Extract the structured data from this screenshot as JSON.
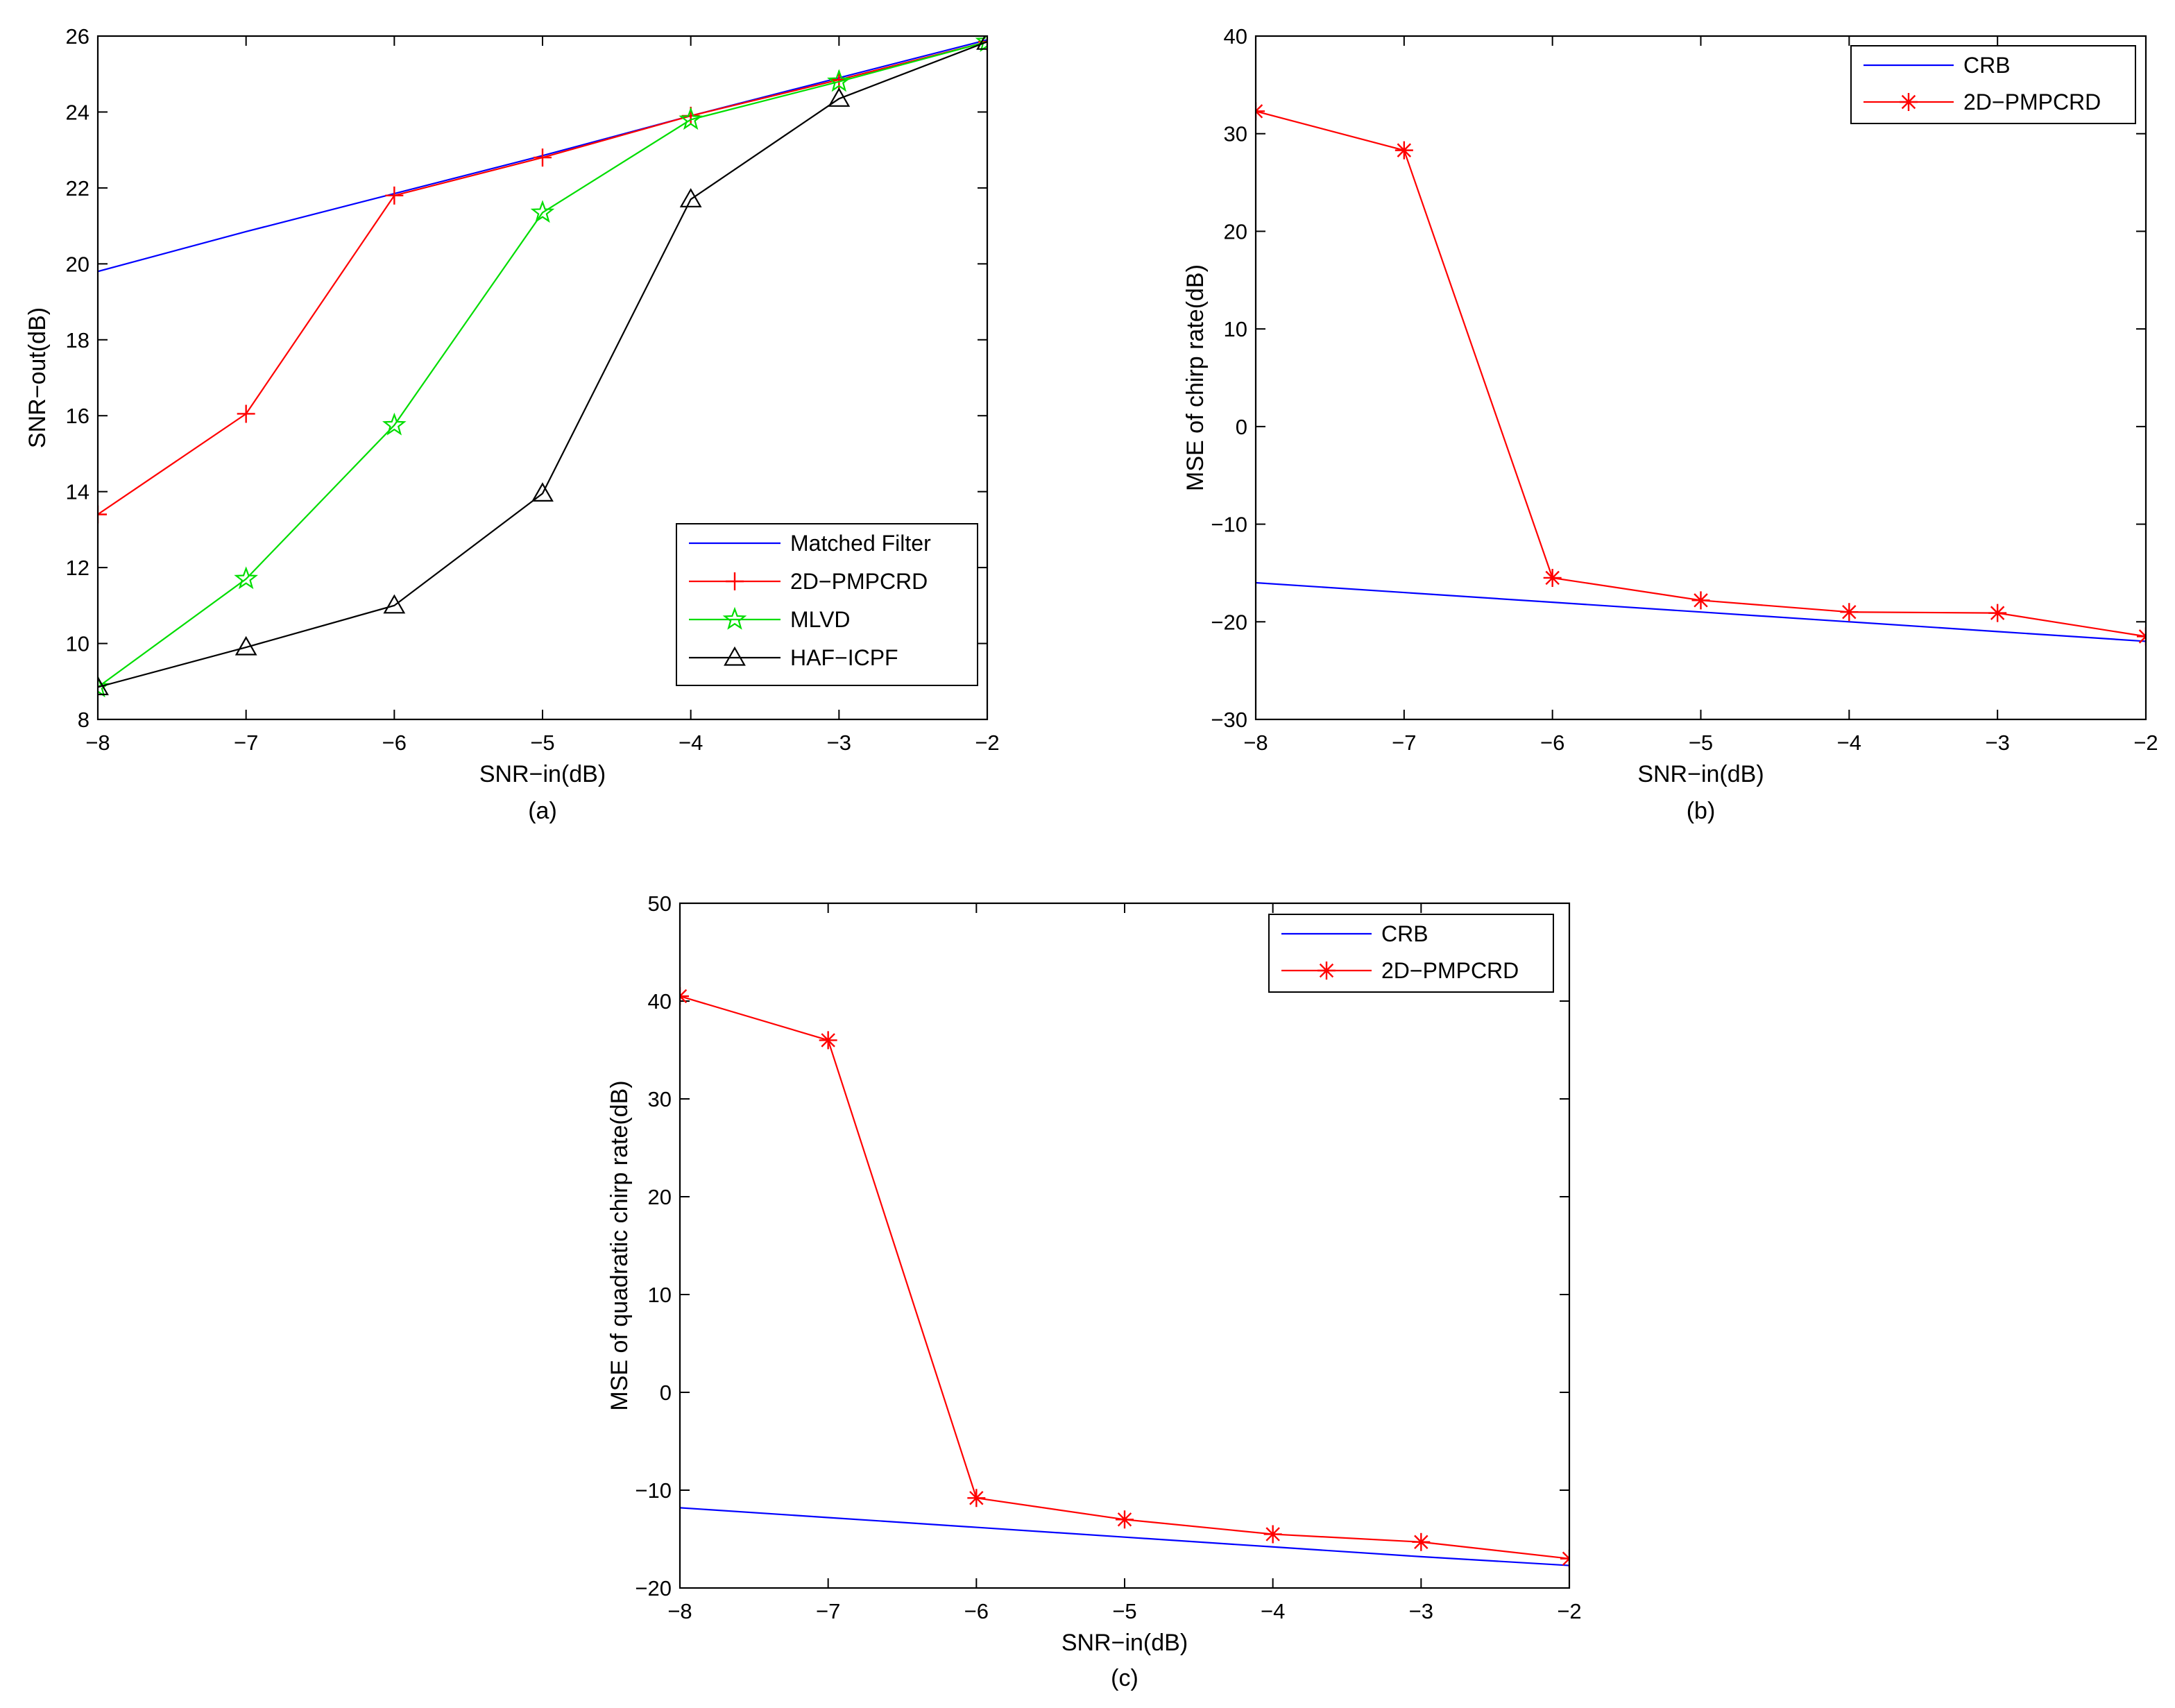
{
  "chart_data": [
    {
      "type": "line",
      "panel": "a",
      "caption": "(a)",
      "xlabel": "SNR−in(dB)",
      "ylabel": "SNR−out(dB)",
      "xlim": [
        -8,
        -2
      ],
      "ylim": [
        8,
        26
      ],
      "xticks": [
        -8,
        -7,
        -6,
        -5,
        -4,
        -3,
        -2
      ],
      "yticks": [
        8,
        10,
        12,
        14,
        16,
        18,
        20,
        22,
        24,
        26
      ],
      "legend_position": "bottom-right",
      "series": [
        {
          "name": "Matched Filter",
          "color": "#0000ff",
          "marker": "none",
          "x": [
            -8,
            -7,
            -6,
            -5,
            -4,
            -3,
            -2
          ],
          "values": [
            19.8,
            20.85,
            21.85,
            22.85,
            23.9,
            24.9,
            25.9
          ]
        },
        {
          "name": "2D−PMPCRD",
          "color": "#ff0000",
          "marker": "plus",
          "x": [
            -8,
            -7,
            -6,
            -5,
            -4,
            -3,
            -2
          ],
          "values": [
            13.4,
            16.05,
            21.8,
            22.8,
            23.9,
            24.85,
            25.85
          ]
        },
        {
          "name": "MLVD",
          "color": "#00dd00",
          "marker": "pentagram",
          "x": [
            -8,
            -7,
            -6,
            -5,
            -4,
            -3,
            -2
          ],
          "values": [
            8.85,
            11.7,
            15.75,
            21.35,
            23.8,
            24.8,
            25.85
          ]
        },
        {
          "name": "HAF−ICPF",
          "color": "#000000",
          "marker": "triangle",
          "x": [
            -8,
            -7,
            -6,
            -5,
            -4,
            -3,
            -2
          ],
          "values": [
            8.85,
            9.9,
            11.0,
            13.95,
            21.7,
            24.35,
            25.85
          ]
        }
      ]
    },
    {
      "type": "line",
      "panel": "b",
      "caption": "(b)",
      "xlabel": "SNR−in(dB)",
      "ylabel": "MSE of chirp rate(dB)",
      "xlim": [
        -8,
        -2
      ],
      "ylim": [
        -30,
        40
      ],
      "xticks": [
        -8,
        -7,
        -6,
        -5,
        -4,
        -3,
        -2
      ],
      "yticks": [
        -30,
        -20,
        -10,
        0,
        10,
        20,
        30,
        40
      ],
      "legend_position": "top-right",
      "series": [
        {
          "name": "CRB",
          "color": "#0000ff",
          "marker": "none",
          "x": [
            -8,
            -7,
            -6,
            -5,
            -4,
            -3,
            -2
          ],
          "values": [
            -16.0,
            -17.0,
            -18.0,
            -19.0,
            -20.0,
            -21.0,
            -22.0
          ]
        },
        {
          "name": "2D−PMPCRD",
          "color": "#ff0000",
          "marker": "asterisk",
          "x": [
            -8,
            -7,
            -6,
            -5,
            -4,
            -3,
            -2
          ],
          "values": [
            32.3,
            28.3,
            -15.5,
            -17.8,
            -19.0,
            -19.1,
            -21.5
          ]
        }
      ]
    },
    {
      "type": "line",
      "panel": "c",
      "caption": "(c)",
      "xlabel": "SNR−in(dB)",
      "ylabel": "MSE of quadratic chirp rate(dB)",
      "xlim": [
        -8,
        -2
      ],
      "ylim": [
        -20,
        50
      ],
      "xticks": [
        -8,
        -7,
        -6,
        -5,
        -4,
        -3,
        -2
      ],
      "yticks": [
        -20,
        -10,
        0,
        10,
        20,
        30,
        40,
        50
      ],
      "legend_position": "top-right",
      "series": [
        {
          "name": "CRB",
          "color": "#0000ff",
          "marker": "none",
          "x": [
            -8,
            -7,
            -6,
            -5,
            -4,
            -3,
            -2
          ],
          "values": [
            -11.8,
            -12.8,
            -13.8,
            -14.8,
            -15.8,
            -16.8,
            -17.7
          ]
        },
        {
          "name": "2D−PMPCRD",
          "color": "#ff0000",
          "marker": "asterisk",
          "x": [
            -8,
            -7,
            -6,
            -5,
            -4,
            -3,
            -2
          ],
          "values": [
            40.5,
            36.0,
            -10.8,
            -13.0,
            -14.5,
            -15.3,
            -17.0
          ]
        }
      ]
    }
  ]
}
